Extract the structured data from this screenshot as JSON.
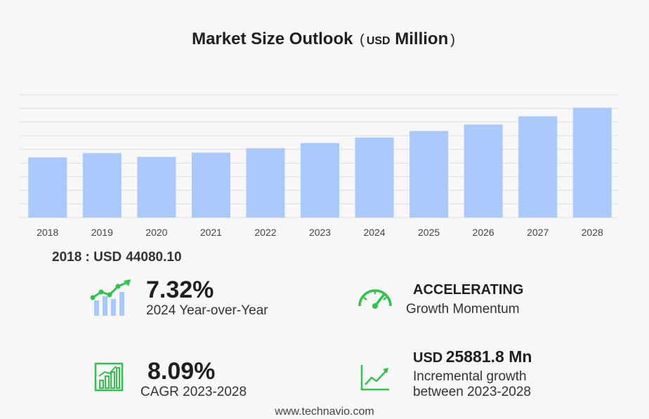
{
  "chart_data": {
    "type": "bar",
    "title": "Market Size Outlook",
    "unit_label": "USD",
    "unit_suffix": "Million",
    "categories": [
      "2018",
      "2019",
      "2020",
      "2021",
      "2022",
      "2023",
      "2024",
      "2025",
      "2026",
      "2027",
      "2028"
    ],
    "values": [
      44080.1,
      47200,
      44500,
      47600,
      50800,
      54600,
      58600,
      63500,
      68200,
      74200,
      80500
    ],
    "ylim": [
      0,
      90000
    ],
    "grid": true,
    "colors": {
      "bar": "#a9c8fb",
      "grid": "#dcdcdc",
      "axis_text": "#444444"
    }
  },
  "base": {
    "label": "2018 : USD",
    "value": "44080.10"
  },
  "stats": {
    "yoy": {
      "value": "7.32%",
      "label": "2024 Year-over-Year"
    },
    "momentum": {
      "value": "ACCELERATING",
      "label": "Growth Momentum"
    },
    "cagr": {
      "value": "8.09%",
      "label": "CAGR 2023-2028"
    },
    "incremental": {
      "prefix": "USD",
      "value": "25881.8 Mn",
      "label1": "Incremental growth",
      "label2": "between 2023-2028"
    }
  },
  "icons": {
    "yoy": "growth-chart-icon",
    "momentum": "speedometer-icon",
    "cagr": "bar-chart-icon",
    "incremental": "trend-line-icon",
    "color": "#2ec44a"
  },
  "footer": "www.technavio.com"
}
